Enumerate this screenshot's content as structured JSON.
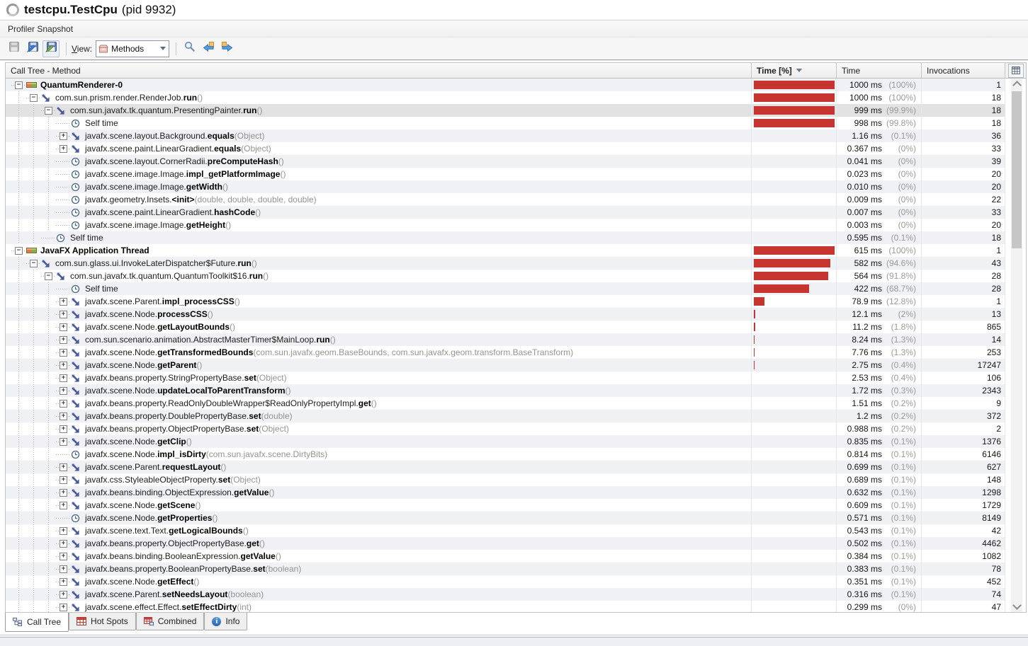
{
  "header": {
    "title": "testcpu.TestCpu",
    "pid": "(pid 9932)"
  },
  "snapshot": {
    "label": "Profiler Snapshot"
  },
  "toolbar": {
    "view_label": "View:",
    "view_value": "Methods",
    "icons": [
      "save-snapshot-icon",
      "export-snapshot-icon",
      "save-view-icon",
      "methods-view-icon",
      "search-icon",
      "previous-icon",
      "next-icon"
    ]
  },
  "table": {
    "col_method": "Call Tree - Method",
    "col_time_pct": "Time [%]",
    "col_time": "Time",
    "col_invocations": "Invocations",
    "sort": {
      "column": "Time [%]",
      "direction": "descending"
    },
    "rows": [
      {
        "level": 0,
        "toggle": "-",
        "icon": "thread",
        "prefix": "",
        "bold": "QuantumRenderer-0",
        "suffix": "",
        "time": "1000 ms",
        "pct": "(100%)",
        "inv": "1",
        "bar": 100
      },
      {
        "level": 1,
        "toggle": "-",
        "icon": "method",
        "prefix": "com.sun.prism.render.RenderJob.",
        "bold": "run",
        "suffix": " ()",
        "time": "1000 ms",
        "pct": "(100%)",
        "inv": "18",
        "bar": 100
      },
      {
        "level": 2,
        "toggle": "-",
        "icon": "method",
        "prefix": "com.sun.javafx.tk.quantum.PresentingPainter.",
        "bold": "run",
        "suffix": " ()",
        "time": "999 ms",
        "pct": "(99.9%)",
        "inv": "18",
        "bar": 100,
        "selected": true
      },
      {
        "level": 3,
        "toggle": "",
        "icon": "clock",
        "prefix": "Self time",
        "bold": "",
        "suffix": "",
        "time": "998 ms",
        "pct": "(99.8%)",
        "inv": "18",
        "bar": 99.8
      },
      {
        "level": 3,
        "toggle": "+",
        "icon": "method",
        "prefix": "javafx.scene.layout.Background.",
        "bold": "equals",
        "suffix": " (Object)",
        "time": "1.16 ms",
        "pct": "(0.1%)",
        "inv": "36",
        "bar": 0
      },
      {
        "level": 3,
        "toggle": "+",
        "icon": "method",
        "prefix": "javafx.scene.paint.LinearGradient.",
        "bold": "equals",
        "suffix": " (Object)",
        "time": "0.367 ms",
        "pct": "(0%)",
        "inv": "33",
        "bar": 0
      },
      {
        "level": 3,
        "toggle": "",
        "icon": "clock",
        "prefix": "javafx.scene.layout.CornerRadii.",
        "bold": "preComputeHash",
        "suffix": " ()",
        "time": "0.041 ms",
        "pct": "(0%)",
        "inv": "39",
        "bar": 0
      },
      {
        "level": 3,
        "toggle": "",
        "icon": "clock",
        "prefix": "javafx.scene.image.Image.",
        "bold": "impl_getPlatformImage",
        "suffix": " ()",
        "time": "0.023 ms",
        "pct": "(0%)",
        "inv": "20",
        "bar": 0
      },
      {
        "level": 3,
        "toggle": "",
        "icon": "clock",
        "prefix": "javafx.scene.image.Image.",
        "bold": "getWidth",
        "suffix": " ()",
        "time": "0.010 ms",
        "pct": "(0%)",
        "inv": "20",
        "bar": 0
      },
      {
        "level": 3,
        "toggle": "",
        "icon": "clock",
        "prefix": "javafx.geometry.Insets.",
        "bold": "<init>",
        "suffix": " (double, double, double, double)",
        "time": "0.009 ms",
        "pct": "(0%)",
        "inv": "22",
        "bar": 0
      },
      {
        "level": 3,
        "toggle": "",
        "icon": "clock",
        "prefix": "javafx.scene.paint.LinearGradient.",
        "bold": "hashCode",
        "suffix": " ()",
        "time": "0.007 ms",
        "pct": "(0%)",
        "inv": "33",
        "bar": 0
      },
      {
        "level": 3,
        "toggle": "",
        "icon": "clock",
        "prefix": "javafx.scene.image.Image.",
        "bold": "getHeight",
        "suffix": " ()",
        "time": "0.003 ms",
        "pct": "(0%)",
        "inv": "20",
        "bar": 0
      },
      {
        "level": 2,
        "toggle": "",
        "icon": "clock",
        "prefix": "Self time",
        "bold": "",
        "suffix": "",
        "time": "0.595 ms",
        "pct": "(0.1%)",
        "inv": "18",
        "bar": 0
      },
      {
        "level": 0,
        "toggle": "-",
        "icon": "thread",
        "prefix": "",
        "bold": "JavaFX Application Thread",
        "suffix": "",
        "time": "615 ms",
        "pct": "(100%)",
        "inv": "1",
        "bar": 100
      },
      {
        "level": 1,
        "toggle": "-",
        "icon": "method",
        "prefix": "com.sun.glass.ui.InvokeLaterDispatcher$Future.",
        "bold": "run",
        "suffix": " ()",
        "time": "582 ms",
        "pct": "(94.6%)",
        "inv": "43",
        "bar": 94.6
      },
      {
        "level": 2,
        "toggle": "-",
        "icon": "method",
        "prefix": "com.sun.javafx.tk.quantum.QuantumToolkit$16.",
        "bold": "run",
        "suffix": " ()",
        "time": "564 ms",
        "pct": "(91.8%)",
        "inv": "28",
        "bar": 91.8
      },
      {
        "level": 3,
        "toggle": "",
        "icon": "clock",
        "prefix": "Self time",
        "bold": "",
        "suffix": "",
        "time": "422 ms",
        "pct": "(68.7%)",
        "inv": "28",
        "bar": 68.7
      },
      {
        "level": 3,
        "toggle": "+",
        "icon": "method",
        "prefix": "javafx.scene.Parent.",
        "bold": "impl_processCSS",
        "suffix": " ()",
        "time": "78.9 ms",
        "pct": "(12.8%)",
        "inv": "1",
        "bar": 12.8
      },
      {
        "level": 3,
        "toggle": "+",
        "icon": "method",
        "prefix": "javafx.scene.Node.",
        "bold": "processCSS",
        "suffix": " ()",
        "time": "12.1 ms",
        "pct": "(2%)",
        "inv": "13",
        "bar": 2
      },
      {
        "level": 3,
        "toggle": "+",
        "icon": "method",
        "prefix": "javafx.scene.Node.",
        "bold": "getLayoutBounds",
        "suffix": " ()",
        "time": "11.2 ms",
        "pct": "(1.8%)",
        "inv": "865",
        "bar": 1.8
      },
      {
        "level": 3,
        "toggle": "+",
        "icon": "method",
        "prefix": "com.sun.scenario.animation.AbstractMasterTimer$MainLoop.",
        "bold": "run",
        "suffix": " ()",
        "time": "8.24 ms",
        "pct": "(1.3%)",
        "inv": "14",
        "bar": 1.3
      },
      {
        "level": 3,
        "toggle": "+",
        "icon": "method",
        "prefix": "javafx.scene.Node.",
        "bold": "getTransformedBounds",
        "suffix": " (com.sun.javafx.geom.BaseBounds, com.sun.javafx.geom.transform.BaseTransform)",
        "time": "7.76 ms",
        "pct": "(1.3%)",
        "inv": "253",
        "bar": 1.3
      },
      {
        "level": 3,
        "toggle": "+",
        "icon": "method",
        "prefix": "javafx.scene.Node.",
        "bold": "getParent",
        "suffix": " ()",
        "time": "2.75 ms",
        "pct": "(0.4%)",
        "inv": "17247",
        "bar": 0.45
      },
      {
        "level": 3,
        "toggle": "+",
        "icon": "method",
        "prefix": "javafx.beans.property.StringPropertyBase.",
        "bold": "set",
        "suffix": " (Object)",
        "time": "2.53 ms",
        "pct": "(0.4%)",
        "inv": "106",
        "bar": 0
      },
      {
        "level": 3,
        "toggle": "+",
        "icon": "method",
        "prefix": "javafx.scene.Node.",
        "bold": "updateLocalToParentTransform",
        "suffix": " ()",
        "time": "1.72 ms",
        "pct": "(0.3%)",
        "inv": "2343",
        "bar": 0
      },
      {
        "level": 3,
        "toggle": "+",
        "icon": "method",
        "prefix": "javafx.beans.property.ReadOnlyDoubleWrapper$ReadOnlyPropertyImpl.",
        "bold": "get",
        "suffix": " ()",
        "time": "1.51 ms",
        "pct": "(0.2%)",
        "inv": "9",
        "bar": 0
      },
      {
        "level": 3,
        "toggle": "+",
        "icon": "method",
        "prefix": "javafx.beans.property.DoublePropertyBase.",
        "bold": "set",
        "suffix": " (double)",
        "time": "1.2 ms",
        "pct": "(0.2%)",
        "inv": "372",
        "bar": 0
      },
      {
        "level": 3,
        "toggle": "+",
        "icon": "method",
        "prefix": "javafx.beans.property.ObjectPropertyBase.",
        "bold": "set",
        "suffix": " (Object)",
        "time": "0.988 ms",
        "pct": "(0.2%)",
        "inv": "2",
        "bar": 0
      },
      {
        "level": 3,
        "toggle": "+",
        "icon": "method",
        "prefix": "javafx.scene.Node.",
        "bold": "getClip",
        "suffix": " ()",
        "time": "0.835 ms",
        "pct": "(0.1%)",
        "inv": "1376",
        "bar": 0
      },
      {
        "level": 3,
        "toggle": "",
        "icon": "clock",
        "prefix": "javafx.scene.Node.",
        "bold": "impl_isDirty",
        "suffix": " (com.sun.javafx.scene.DirtyBits)",
        "time": "0.814 ms",
        "pct": "(0.1%)",
        "inv": "6146",
        "bar": 0
      },
      {
        "level": 3,
        "toggle": "+",
        "icon": "method",
        "prefix": "javafx.scene.Parent.",
        "bold": "requestLayout",
        "suffix": " ()",
        "time": "0.699 ms",
        "pct": "(0.1%)",
        "inv": "627",
        "bar": 0
      },
      {
        "level": 3,
        "toggle": "+",
        "icon": "method",
        "prefix": "javafx.css.StyleableObjectProperty.",
        "bold": "set",
        "suffix": " (Object)",
        "time": "0.689 ms",
        "pct": "(0.1%)",
        "inv": "148",
        "bar": 0
      },
      {
        "level": 3,
        "toggle": "+",
        "icon": "method",
        "prefix": "javafx.beans.binding.ObjectExpression.",
        "bold": "getValue",
        "suffix": " ()",
        "time": "0.632 ms",
        "pct": "(0.1%)",
        "inv": "1298",
        "bar": 0
      },
      {
        "level": 3,
        "toggle": "+",
        "icon": "method",
        "prefix": "javafx.scene.Node.",
        "bold": "getScene",
        "suffix": " ()",
        "time": "0.609 ms",
        "pct": "(0.1%)",
        "inv": "1729",
        "bar": 0
      },
      {
        "level": 3,
        "toggle": "",
        "icon": "clock",
        "prefix": "javafx.scene.Node.",
        "bold": "getProperties",
        "suffix": " ()",
        "time": "0.571 ms",
        "pct": "(0.1%)",
        "inv": "8149",
        "bar": 0
      },
      {
        "level": 3,
        "toggle": "+",
        "icon": "method",
        "prefix": "javafx.scene.text.Text.",
        "bold": "getLogicalBounds",
        "suffix": " ()",
        "time": "0.543 ms",
        "pct": "(0.1%)",
        "inv": "42",
        "bar": 0
      },
      {
        "level": 3,
        "toggle": "+",
        "icon": "method",
        "prefix": "javafx.beans.property.ObjectPropertyBase.",
        "bold": "get",
        "suffix": " ()",
        "time": "0.502 ms",
        "pct": "(0.1%)",
        "inv": "4462",
        "bar": 0
      },
      {
        "level": 3,
        "toggle": "+",
        "icon": "method",
        "prefix": "javafx.beans.binding.BooleanExpression.",
        "bold": "getValue",
        "suffix": " ()",
        "time": "0.384 ms",
        "pct": "(0.1%)",
        "inv": "1082",
        "bar": 0
      },
      {
        "level": 3,
        "toggle": "+",
        "icon": "method",
        "prefix": "javafx.beans.property.BooleanPropertyBase.",
        "bold": "set",
        "suffix": " (boolean)",
        "time": "0.383 ms",
        "pct": "(0.1%)",
        "inv": "78",
        "bar": 0
      },
      {
        "level": 3,
        "toggle": "+",
        "icon": "method",
        "prefix": "javafx.scene.Node.",
        "bold": "getEffect",
        "suffix": " ()",
        "time": "0.351 ms",
        "pct": "(0.1%)",
        "inv": "452",
        "bar": 0
      },
      {
        "level": 3,
        "toggle": "+",
        "icon": "method",
        "prefix": "javafx.scene.Parent.",
        "bold": "setNeedsLayout",
        "suffix": " (boolean)",
        "time": "0.316 ms",
        "pct": "(0.1%)",
        "inv": "74",
        "bar": 0
      },
      {
        "level": 3,
        "toggle": "+",
        "icon": "method",
        "prefix": "javafx.scene.effect.Effect.",
        "bold": "setEffectDirty",
        "suffix": " (int)",
        "time": "0.299 ms",
        "pct": "(0%)",
        "inv": "47",
        "bar": 0
      }
    ]
  },
  "tabs": [
    {
      "label": "Call Tree",
      "active": true
    },
    {
      "label": "Hot Spots",
      "active": false
    },
    {
      "label": "Combined",
      "active": false
    },
    {
      "label": "Info",
      "active": false
    }
  ],
  "colors": {
    "bar_red": "#c5342f",
    "row_stripe": "#eff1f5",
    "row_selected": "#e2e2e2",
    "thread_icon_orange": "#e07a3f",
    "thread_icon_green": "#7fb23e"
  }
}
